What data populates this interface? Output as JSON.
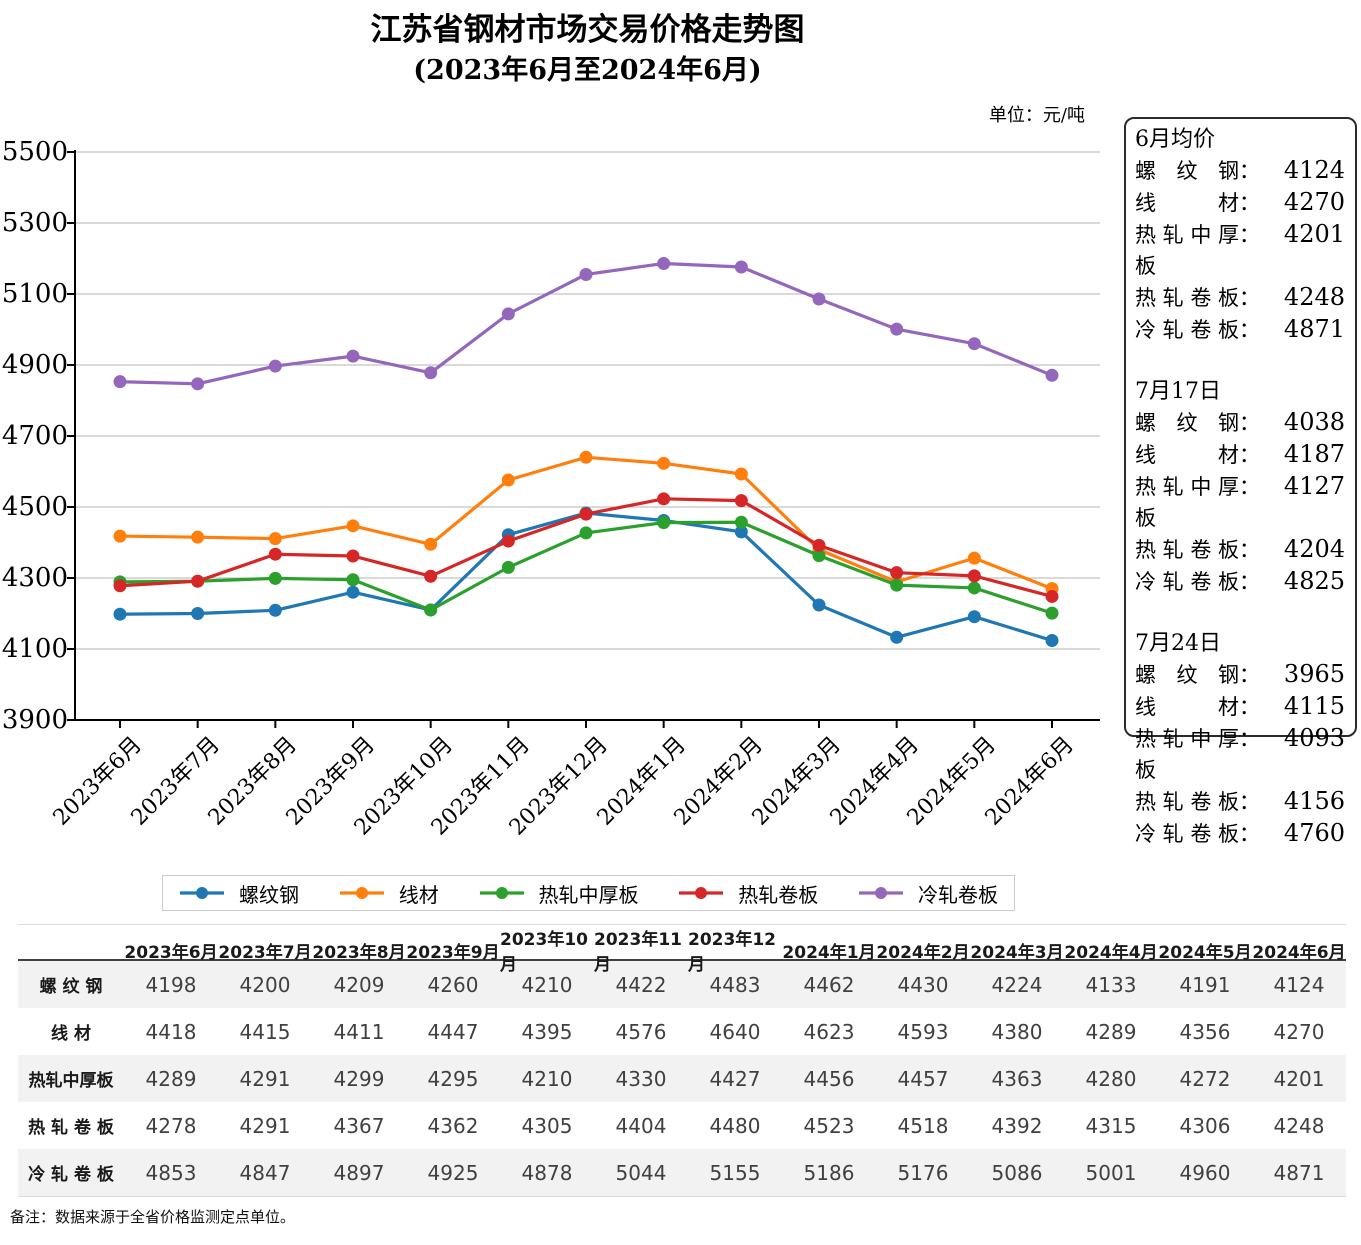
{
  "page": {
    "title_line1": "江苏省钢材市场交易价格走势图",
    "title_line2": "(2023年6月至2024年6月)",
    "unit_label": "单位：元/吨",
    "footnote": "备注：数据来源于全省价格监测定点单位。"
  },
  "chart_data": {
    "type": "line",
    "title": "江苏省钢材市场交易价格走势图 (2023年6月至2024年6月)",
    "unit": "元/吨",
    "categories": [
      "2023年6月",
      "2023年7月",
      "2023年8月",
      "2023年9月",
      "2023年10月",
      "2023年11月",
      "2023年12月",
      "2024年1月",
      "2024年2月",
      "2024年3月",
      "2024年4月",
      "2024年5月",
      "2024年6月"
    ],
    "series": [
      {
        "name": "螺纹钢",
        "color": "#1f77b4",
        "values": [
          4198,
          4200,
          4209,
          4260,
          4210,
          4422,
          4483,
          4462,
          4430,
          4224,
          4133,
          4191,
          4124
        ]
      },
      {
        "name": "线材",
        "color": "#ff7f0e",
        "values": [
          4418,
          4415,
          4411,
          4447,
          4395,
          4576,
          4640,
          4623,
          4593,
          4380,
          4289,
          4356,
          4270
        ]
      },
      {
        "name": "热轧中厚板",
        "color": "#2ca02c",
        "values": [
          4289,
          4291,
          4299,
          4295,
          4210,
          4330,
          4427,
          4456,
          4457,
          4363,
          4280,
          4272,
          4201
        ]
      },
      {
        "name": "热轧卷板",
        "color": "#d62728",
        "values": [
          4278,
          4291,
          4367,
          4362,
          4305,
          4404,
          4480,
          4523,
          4518,
          4392,
          4315,
          4306,
          4248
        ]
      },
      {
        "name": "冷轧卷板",
        "color": "#9467bd",
        "values": [
          4853,
          4847,
          4897,
          4925,
          4878,
          5044,
          5155,
          5186,
          5176,
          5086,
          5001,
          4960,
          4871
        ]
      }
    ],
    "ylim": [
      3900,
      5500
    ],
    "yticks": [
      3900,
      4100,
      4300,
      4500,
      4700,
      4900,
      5100,
      5300,
      5500
    ],
    "grid": true,
    "legend_position": "bottom"
  },
  "info_box": {
    "sections": [
      {
        "heading": "6月均价",
        "rows": [
          {
            "label": "螺纹钢",
            "value": "4124"
          },
          {
            "label": "线材",
            "value": "4270"
          },
          {
            "label": "热轧中厚板",
            "value": "4201"
          },
          {
            "label": "热轧卷板",
            "value": "4248"
          },
          {
            "label": "冷轧卷板",
            "value": "4871"
          }
        ]
      },
      {
        "heading": "7月17日",
        "rows": [
          {
            "label": "螺纹钢",
            "value": "4038"
          },
          {
            "label": "线材",
            "value": "4187"
          },
          {
            "label": "热轧中厚板",
            "value": "4127"
          },
          {
            "label": "热轧卷板",
            "value": "4204"
          },
          {
            "label": "冷轧卷板",
            "value": "4825"
          }
        ]
      },
      {
        "heading": "7月24日",
        "rows": [
          {
            "label": "螺纹钢",
            "value": "3965"
          },
          {
            "label": "线材",
            "value": "4115"
          },
          {
            "label": "热轧中厚板",
            "value": "4093"
          },
          {
            "label": "热轧卷板",
            "value": "4156"
          },
          {
            "label": "冷轧卷板",
            "value": "4760"
          }
        ]
      }
    ]
  },
  "table": {
    "row_labels": [
      "螺 纹 钢",
      "线 材",
      "热轧中厚板",
      "热 轧 卷 板",
      "冷 轧 卷 板"
    ]
  }
}
